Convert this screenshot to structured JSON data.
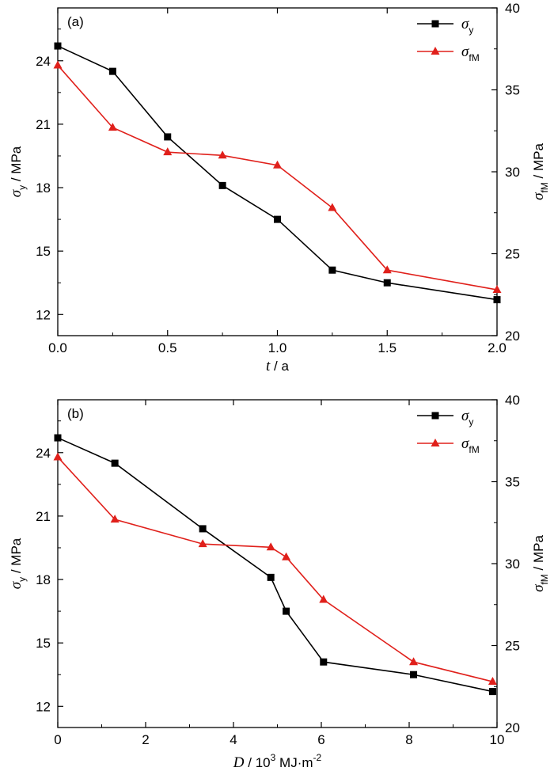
{
  "chart_data": [
    {
      "type": "line",
      "panel_label": "(a)",
      "x": [
        0,
        0.25,
        0.5,
        0.75,
        1.0,
        1.25,
        1.5,
        2.0
      ],
      "xlim": [
        0,
        2.0
      ],
      "x_ticks": [
        "0.0",
        "0.5",
        "1.0",
        "1.5",
        "2.0"
      ],
      "x_tick_values": [
        0,
        0.5,
        1.0,
        1.5,
        2.0
      ],
      "xlabel_symbol": "t",
      "xlabel_rest": " / a",
      "ylim_left": [
        11,
        26.5
      ],
      "y_left_ticks": [
        "12",
        "15",
        "18",
        "21",
        "24"
      ],
      "y_left_tick_values": [
        12,
        15,
        18,
        21,
        24
      ],
      "ylabel_left_symbol": "σ",
      "ylabel_left_sub": "y",
      "ylabel_left_rest": " / MPa",
      "ylim_right": [
        20,
        40
      ],
      "y_right_ticks": [
        "20",
        "25",
        "30",
        "35",
        "40"
      ],
      "y_right_tick_values": [
        20,
        25,
        30,
        35,
        40
      ],
      "ylabel_right_symbol": "σ",
      "ylabel_right_sub": "fM",
      "ylabel_right_rest": " / MPa",
      "legend_position": "top-right",
      "series": [
        {
          "name_symbol": "σ",
          "name_sub": "y",
          "axis": "left",
          "marker": "square",
          "color": "#000000",
          "values": [
            24.7,
            23.5,
            20.4,
            18.1,
            16.5,
            14.1,
            13.5,
            12.7
          ]
        },
        {
          "name_symbol": "σ",
          "name_sub": "fM",
          "axis": "right",
          "marker": "triangle",
          "color": "#e0201b",
          "values": [
            36.5,
            32.7,
            31.2,
            31.0,
            30.4,
            27.8,
            24.0,
            22.8
          ]
        }
      ]
    },
    {
      "type": "line",
      "panel_label": "(b)",
      "x_series": [
        [
          0,
          1.3,
          3.3,
          4.85,
          5.2,
          6.05,
          8.1,
          9.9
        ],
        [
          0,
          1.3,
          3.3,
          4.85,
          5.2,
          6.05,
          8.1,
          9.9
        ]
      ],
      "xlim": [
        0,
        10
      ],
      "x_ticks": [
        "0",
        "2",
        "4",
        "6",
        "8",
        "10"
      ],
      "x_tick_values": [
        0,
        2,
        4,
        6,
        8,
        10
      ],
      "xlabel_symbol": "D",
      "xlabel_rest": " / 10",
      "xlabel_sup": "3",
      "xlabel_rest2": " MJ·m",
      "xlabel_sup2": "-2",
      "ylim_left": [
        11,
        26.5
      ],
      "y_left_ticks": [
        "12",
        "15",
        "18",
        "21",
        "24"
      ],
      "y_left_tick_values": [
        12,
        15,
        18,
        21,
        24
      ],
      "ylabel_left_symbol": "σ",
      "ylabel_left_sub": "y",
      "ylabel_left_rest": " / MPa",
      "ylim_right": [
        20,
        40
      ],
      "y_right_ticks": [
        "20",
        "25",
        "30",
        "35",
        "40"
      ],
      "y_right_tick_values": [
        20,
        25,
        30,
        35,
        40
      ],
      "ylabel_right_symbol": "σ",
      "ylabel_right_sub": "fM",
      "ylabel_right_rest": " / MPa",
      "legend_position": "top-right",
      "series": [
        {
          "name_symbol": "σ",
          "name_sub": "y",
          "axis": "left",
          "marker": "square",
          "color": "#000000",
          "x": [
            0,
            1.3,
            3.3,
            4.85,
            5.2,
            6.05,
            8.1,
            9.9
          ],
          "values": [
            24.7,
            23.5,
            20.4,
            18.1,
            16.5,
            14.1,
            13.5,
            12.7
          ]
        },
        {
          "name_symbol": "σ",
          "name_sub": "fM",
          "axis": "right",
          "marker": "triangle",
          "color": "#e0201b",
          "x": [
            0,
            1.3,
            3.3,
            4.85,
            5.2,
            6.05,
            8.1,
            9.9
          ],
          "values": [
            36.5,
            32.7,
            31.2,
            31.0,
            30.4,
            27.8,
            24.0,
            22.8
          ]
        }
      ]
    }
  ]
}
